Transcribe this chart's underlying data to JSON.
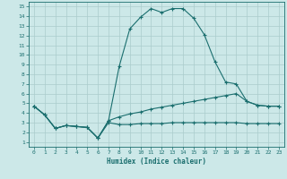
{
  "xlabel": "Humidex (Indice chaleur)",
  "background_color": "#cce8e8",
  "grid_color": "#aacccc",
  "line_color": "#1a6e6e",
  "xlim": [
    -0.5,
    23.5
  ],
  "ylim": [
    0.5,
    15.5
  ],
  "xticks": [
    0,
    1,
    2,
    3,
    4,
    5,
    6,
    7,
    8,
    9,
    10,
    11,
    12,
    13,
    14,
    15,
    16,
    17,
    18,
    19,
    20,
    21,
    22,
    23
  ],
  "yticks": [
    1,
    2,
    3,
    4,
    5,
    6,
    7,
    8,
    9,
    10,
    11,
    12,
    13,
    14,
    15
  ],
  "curve1_x": [
    0,
    1,
    2,
    3,
    4,
    5,
    6,
    7,
    8,
    9,
    10,
    11,
    12,
    13,
    14,
    15,
    16,
    17,
    18,
    19,
    20,
    21,
    22,
    23
  ],
  "curve1_y": [
    4.7,
    3.8,
    2.4,
    2.7,
    2.6,
    2.5,
    1.4,
    3.2,
    8.8,
    12.7,
    13.9,
    14.8,
    14.4,
    14.8,
    14.8,
    13.8,
    12.1,
    9.3,
    7.2,
    7.0,
    5.2,
    4.8,
    4.7,
    4.7
  ],
  "curve2_x": [
    0,
    1,
    2,
    3,
    4,
    5,
    6,
    7,
    8,
    9,
    10,
    11,
    12,
    13,
    14,
    15,
    16,
    17,
    18,
    19,
    20,
    21,
    22,
    23
  ],
  "curve2_y": [
    4.7,
    3.8,
    2.4,
    2.7,
    2.6,
    2.5,
    1.4,
    3.2,
    3.6,
    3.9,
    4.1,
    4.4,
    4.6,
    4.8,
    5.0,
    5.2,
    5.4,
    5.6,
    5.8,
    6.0,
    5.2,
    4.8,
    4.7,
    4.7
  ],
  "curve3_x": [
    0,
    1,
    2,
    3,
    4,
    5,
    6,
    7,
    8,
    9,
    10,
    11,
    12,
    13,
    14,
    15,
    16,
    17,
    18,
    19,
    20,
    21,
    22,
    23
  ],
  "curve3_y": [
    4.7,
    3.8,
    2.4,
    2.7,
    2.6,
    2.5,
    1.4,
    3.0,
    2.8,
    2.8,
    2.9,
    2.9,
    2.9,
    3.0,
    3.0,
    3.0,
    3.0,
    3.0,
    3.0,
    3.0,
    2.9,
    2.9,
    2.9,
    2.9
  ]
}
